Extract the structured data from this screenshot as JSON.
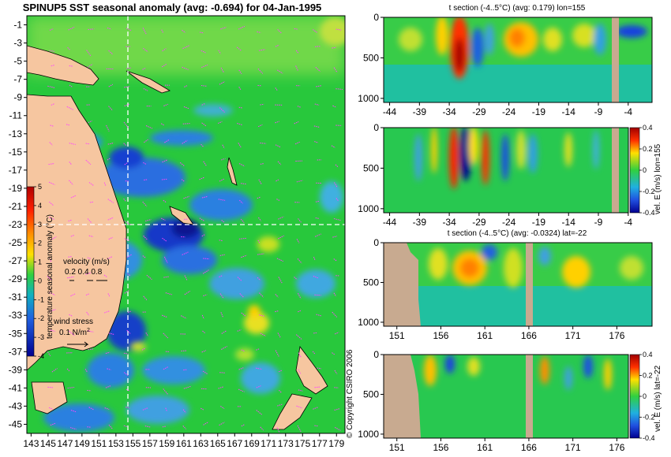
{
  "colors": {
    "page_bg": "#ffffff",
    "land": "#f6c6a0",
    "land_section": "#c8aa90",
    "sea_base": "#28c83c",
    "dashed_line": "#ffffff",
    "arrows": "#ff44ff"
  },
  "chart_data": [
    {
      "type": "heatmap",
      "title": "SPINUP5 SST seasonal anomaly (avg: -0.694) for 04-Jan-1995",
      "x": {
        "ticks": [
          143,
          145,
          147,
          149,
          151,
          153,
          155,
          157,
          159,
          161,
          163,
          165,
          167,
          169,
          171,
          173,
          175,
          177,
          179
        ],
        "range": [
          142.5,
          180
        ]
      },
      "y": {
        "ticks": [
          -1,
          -3,
          -5,
          -7,
          -9,
          -11,
          -13,
          -15,
          -17,
          -19,
          -21,
          -23,
          -25,
          -27,
          -29,
          -31,
          -33,
          -35,
          -37,
          -39,
          -41,
          -43,
          -45
        ],
        "range": [
          -46,
          0
        ]
      },
      "section_lines": {
        "lon": 155,
        "lat": -22
      },
      "colorbar": {
        "label": "temperature seasonal anomaly (°C)",
        "ticks": [
          5,
          4,
          3,
          2,
          1,
          0,
          -1,
          -2,
          -3,
          -4
        ],
        "range": [
          -4,
          5
        ]
      },
      "legend": {
        "velocity_label": "velocity (m/s)",
        "velocity_values": "0.2 0.4 0.8",
        "wind_label": "wind stress",
        "wind_value": "0.1 N/m",
        "wind_exp": "2"
      }
    },
    {
      "type": "heatmap",
      "title": "t section (-4..5°C) (avg: 0.179) lon=155",
      "x": {
        "ticks": [
          -44,
          -39,
          -34,
          -29,
          -24,
          -19,
          -14,
          -9,
          -4
        ],
        "range": [
          -45,
          0
        ]
      },
      "y": {
        "ticks": [
          0,
          500,
          1000
        ],
        "range": [
          0,
          1050
        ],
        "inverted": true
      }
    },
    {
      "type": "heatmap",
      "title": "",
      "x": {
        "ticks": [
          -44,
          -39,
          -34,
          -29,
          -24,
          -19,
          -14,
          -9,
          -4
        ],
        "range": [
          -45,
          0
        ]
      },
      "y": {
        "ticks": [
          0,
          500,
          1000
        ],
        "range": [
          0,
          1050
        ],
        "inverted": true
      },
      "colorbar": {
        "label": "vel. E (m/s) lon=155",
        "ticks": [
          0.4,
          0.2,
          0,
          -0.2,
          -0.4
        ],
        "range": [
          -0.4,
          0.4
        ]
      }
    },
    {
      "type": "heatmap",
      "title": "t section (-4..5°C) (avg: -0.0324) lat=-22",
      "x": {
        "ticks": [
          151,
          156,
          161,
          166,
          171,
          176
        ],
        "range": [
          149.5,
          180
        ]
      },
      "y": {
        "ticks": [
          0,
          500,
          1000
        ],
        "range": [
          0,
          1050
        ],
        "inverted": true
      }
    },
    {
      "type": "heatmap",
      "title": "",
      "x": {
        "ticks": [
          151,
          156,
          161,
          166,
          171,
          176
        ],
        "range": [
          149.5,
          180
        ]
      },
      "y": {
        "ticks": [
          0,
          500,
          1000
        ],
        "range": [
          0,
          1050
        ],
        "inverted": true
      },
      "colorbar": {
        "label": "vel. E (m/s) lat=-22",
        "ticks": [
          0.4,
          0.2,
          0,
          -0.2,
          -0.4
        ],
        "range": [
          -0.4,
          0.4
        ]
      }
    }
  ],
  "copyright": "© Copyright CSIRO 2006"
}
